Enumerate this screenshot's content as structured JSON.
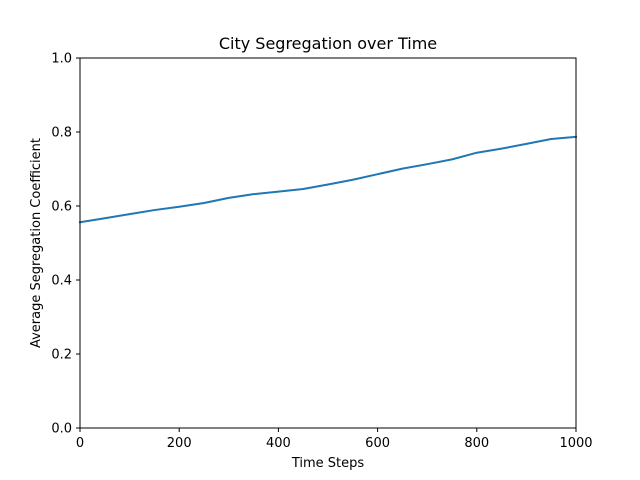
{
  "chart_data": {
    "type": "line",
    "title": "City Segregation over Time",
    "xlabel": "Time Steps",
    "ylabel": "Average Segregation Coefficient",
    "xlim": [
      0,
      1000
    ],
    "ylim": [
      0,
      1.0
    ],
    "xticks": [
      0,
      200,
      400,
      600,
      800,
      1000
    ],
    "xtick_labels": [
      "0",
      "200",
      "400",
      "600",
      "800",
      "1000"
    ],
    "yticks": [
      0.0,
      0.2,
      0.4,
      0.6,
      0.8,
      1.0
    ],
    "ytick_labels": [
      "0.0",
      "0.2",
      "0.4",
      "0.6",
      "0.8",
      "1.0"
    ],
    "grid": false,
    "series": [
      {
        "color": "#1f77b4",
        "x": [
          0,
          50,
          100,
          150,
          200,
          250,
          300,
          350,
          400,
          450,
          500,
          550,
          600,
          650,
          700,
          750,
          800,
          850,
          900,
          950,
          1000
        ],
        "y": [
          0.556,
          0.567,
          0.578,
          0.589,
          0.598,
          0.608,
          0.622,
          0.632,
          0.639,
          0.646,
          0.658,
          0.671,
          0.686,
          0.701,
          0.713,
          0.726,
          0.744,
          0.755,
          0.768,
          0.781,
          0.787
        ]
      }
    ]
  }
}
